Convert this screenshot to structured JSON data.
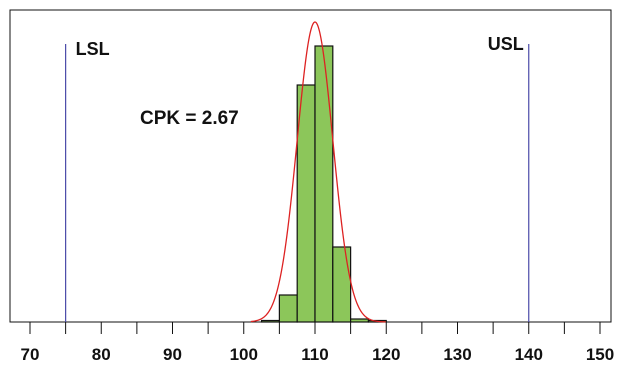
{
  "chart_data": {
    "type": "histogram",
    "xlim": [
      70,
      150
    ],
    "x_ticks": [
      70,
      80,
      90,
      100,
      110,
      120,
      130,
      140,
      150
    ],
    "x_tick_labels": [
      "70",
      "80",
      "90",
      "100",
      "110",
      "120",
      "130",
      "140",
      "150"
    ],
    "bin_width": 2.5,
    "bins": [
      {
        "start": 102.5,
        "end": 105.0,
        "value": 0.005
      },
      {
        "start": 105.0,
        "end": 107.5,
        "value": 0.09
      },
      {
        "start": 107.5,
        "end": 110.0,
        "value": 0.79
      },
      {
        "start": 110.0,
        "end": 112.5,
        "value": 0.92
      },
      {
        "start": 112.5,
        "end": 115.0,
        "value": 0.25
      },
      {
        "start": 115.0,
        "end": 117.5,
        "value": 0.01
      },
      {
        "start": 117.5,
        "end": 120.0,
        "value": 0.005
      }
    ],
    "fit_curve": {
      "type": "normal",
      "mean": 110.0,
      "sd": 2.5,
      "peak": 1.0,
      "color": "#dd2222"
    },
    "spec_limits": [
      {
        "name": "LSL",
        "value": 75,
        "color": "#4a4aa8"
      },
      {
        "name": "USL",
        "value": 140,
        "color": "#4a4aa8"
      }
    ],
    "annotation": "CPK = 2.67",
    "bar_color": "#8cc65a",
    "bar_edge_color": "#111111",
    "grid": false
  }
}
